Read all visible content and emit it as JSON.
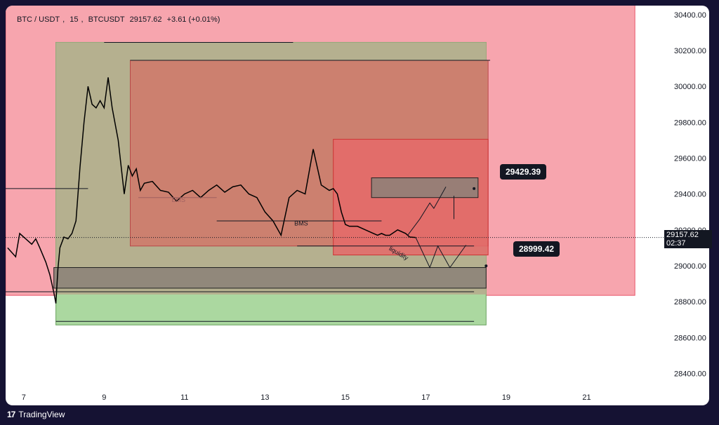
{
  "header": {
    "symbol": "BTC / USDT",
    "interval": "15",
    "exchange": "BTCUSDT",
    "last": "29157.62",
    "change": "+3.61 (+0.01%)"
  },
  "last_price_tag": {
    "price": "29157.62",
    "countdown": "02:37"
  },
  "callouts": {
    "upper": "29429.39",
    "lower": "28999.42"
  },
  "annotations": {
    "bms1": "BMS",
    "bms2": "BMS",
    "liquidity": "liquidity"
  },
  "footer": {
    "brand": "TradingView"
  },
  "colors": {
    "red_zone": "#f7a5ae",
    "green_zone": "#abd8a0",
    "olive_zone": "#b5b08f",
    "mid_red": "#cd7d6e",
    "bright_red": "#e56a6a",
    "dark_box": "#8b8178"
  },
  "chart_data": {
    "type": "line",
    "title": "BTC / USDT, 15, BTCUSDT",
    "xlabel": "",
    "ylabel": "",
    "x_ticks": [
      "7",
      "9",
      "11",
      "13",
      "15",
      "17",
      "19",
      "21"
    ],
    "y_ticks": [
      "28400.00",
      "28600.00",
      "28800.00",
      "29000.00",
      "29200.00",
      "29400.00",
      "29600.00",
      "29800.00",
      "30000.00",
      "30200.00",
      "30400.00"
    ],
    "ylim": [
      28300,
      30450
    ],
    "xlim": [
      6.55,
      23.0
    ],
    "series": [
      {
        "x": [
          6.6,
          6.8,
          6.9,
          7.05,
          7.2,
          7.3,
          7.4,
          7.55,
          7.65,
          7.75,
          7.8,
          7.85,
          7.9,
          8.0,
          8.1,
          8.2,
          8.3,
          8.4,
          8.5,
          8.6,
          8.7,
          8.8,
          8.9,
          9.0,
          9.1,
          9.2,
          9.35,
          9.5,
          9.6,
          9.7,
          9.8,
          9.9,
          10.0,
          10.2,
          10.4,
          10.6,
          10.8,
          11.0,
          11.2,
          11.4,
          11.6,
          11.8,
          12.0,
          12.2,
          12.4,
          12.6,
          12.8,
          13.0,
          13.2,
          13.4,
          13.6,
          13.8,
          14.0,
          14.2,
          14.3,
          14.4,
          14.6,
          14.7,
          14.8,
          14.9,
          15.0,
          15.1,
          15.3,
          15.5,
          15.7,
          15.8,
          15.9,
          16.0,
          16.1,
          16.3,
          16.5,
          16.6,
          16.75
        ],
        "y": [
          29100,
          29050,
          29180,
          29150,
          29120,
          29150,
          29100,
          29020,
          28950,
          28850,
          28790,
          28980,
          29100,
          29160,
          29150,
          29180,
          29250,
          29550,
          29800,
          30000,
          29900,
          29880,
          29920,
          29880,
          30050,
          29880,
          29700,
          29400,
          29560,
          29500,
          29540,
          29420,
          29460,
          29470,
          29420,
          29410,
          29360,
          29400,
          29420,
          29380,
          29420,
          29450,
          29410,
          29440,
          29450,
          29400,
          29380,
          29300,
          29250,
          29170,
          29380,
          29420,
          29400,
          29650,
          29550,
          29450,
          29420,
          29430,
          29400,
          29300,
          29230,
          29220,
          29220,
          29200,
          29180,
          29170,
          29180,
          29170,
          29170,
          29200,
          29180,
          29160,
          29157.62
        ],
        "name": ""
      }
    ]
  }
}
